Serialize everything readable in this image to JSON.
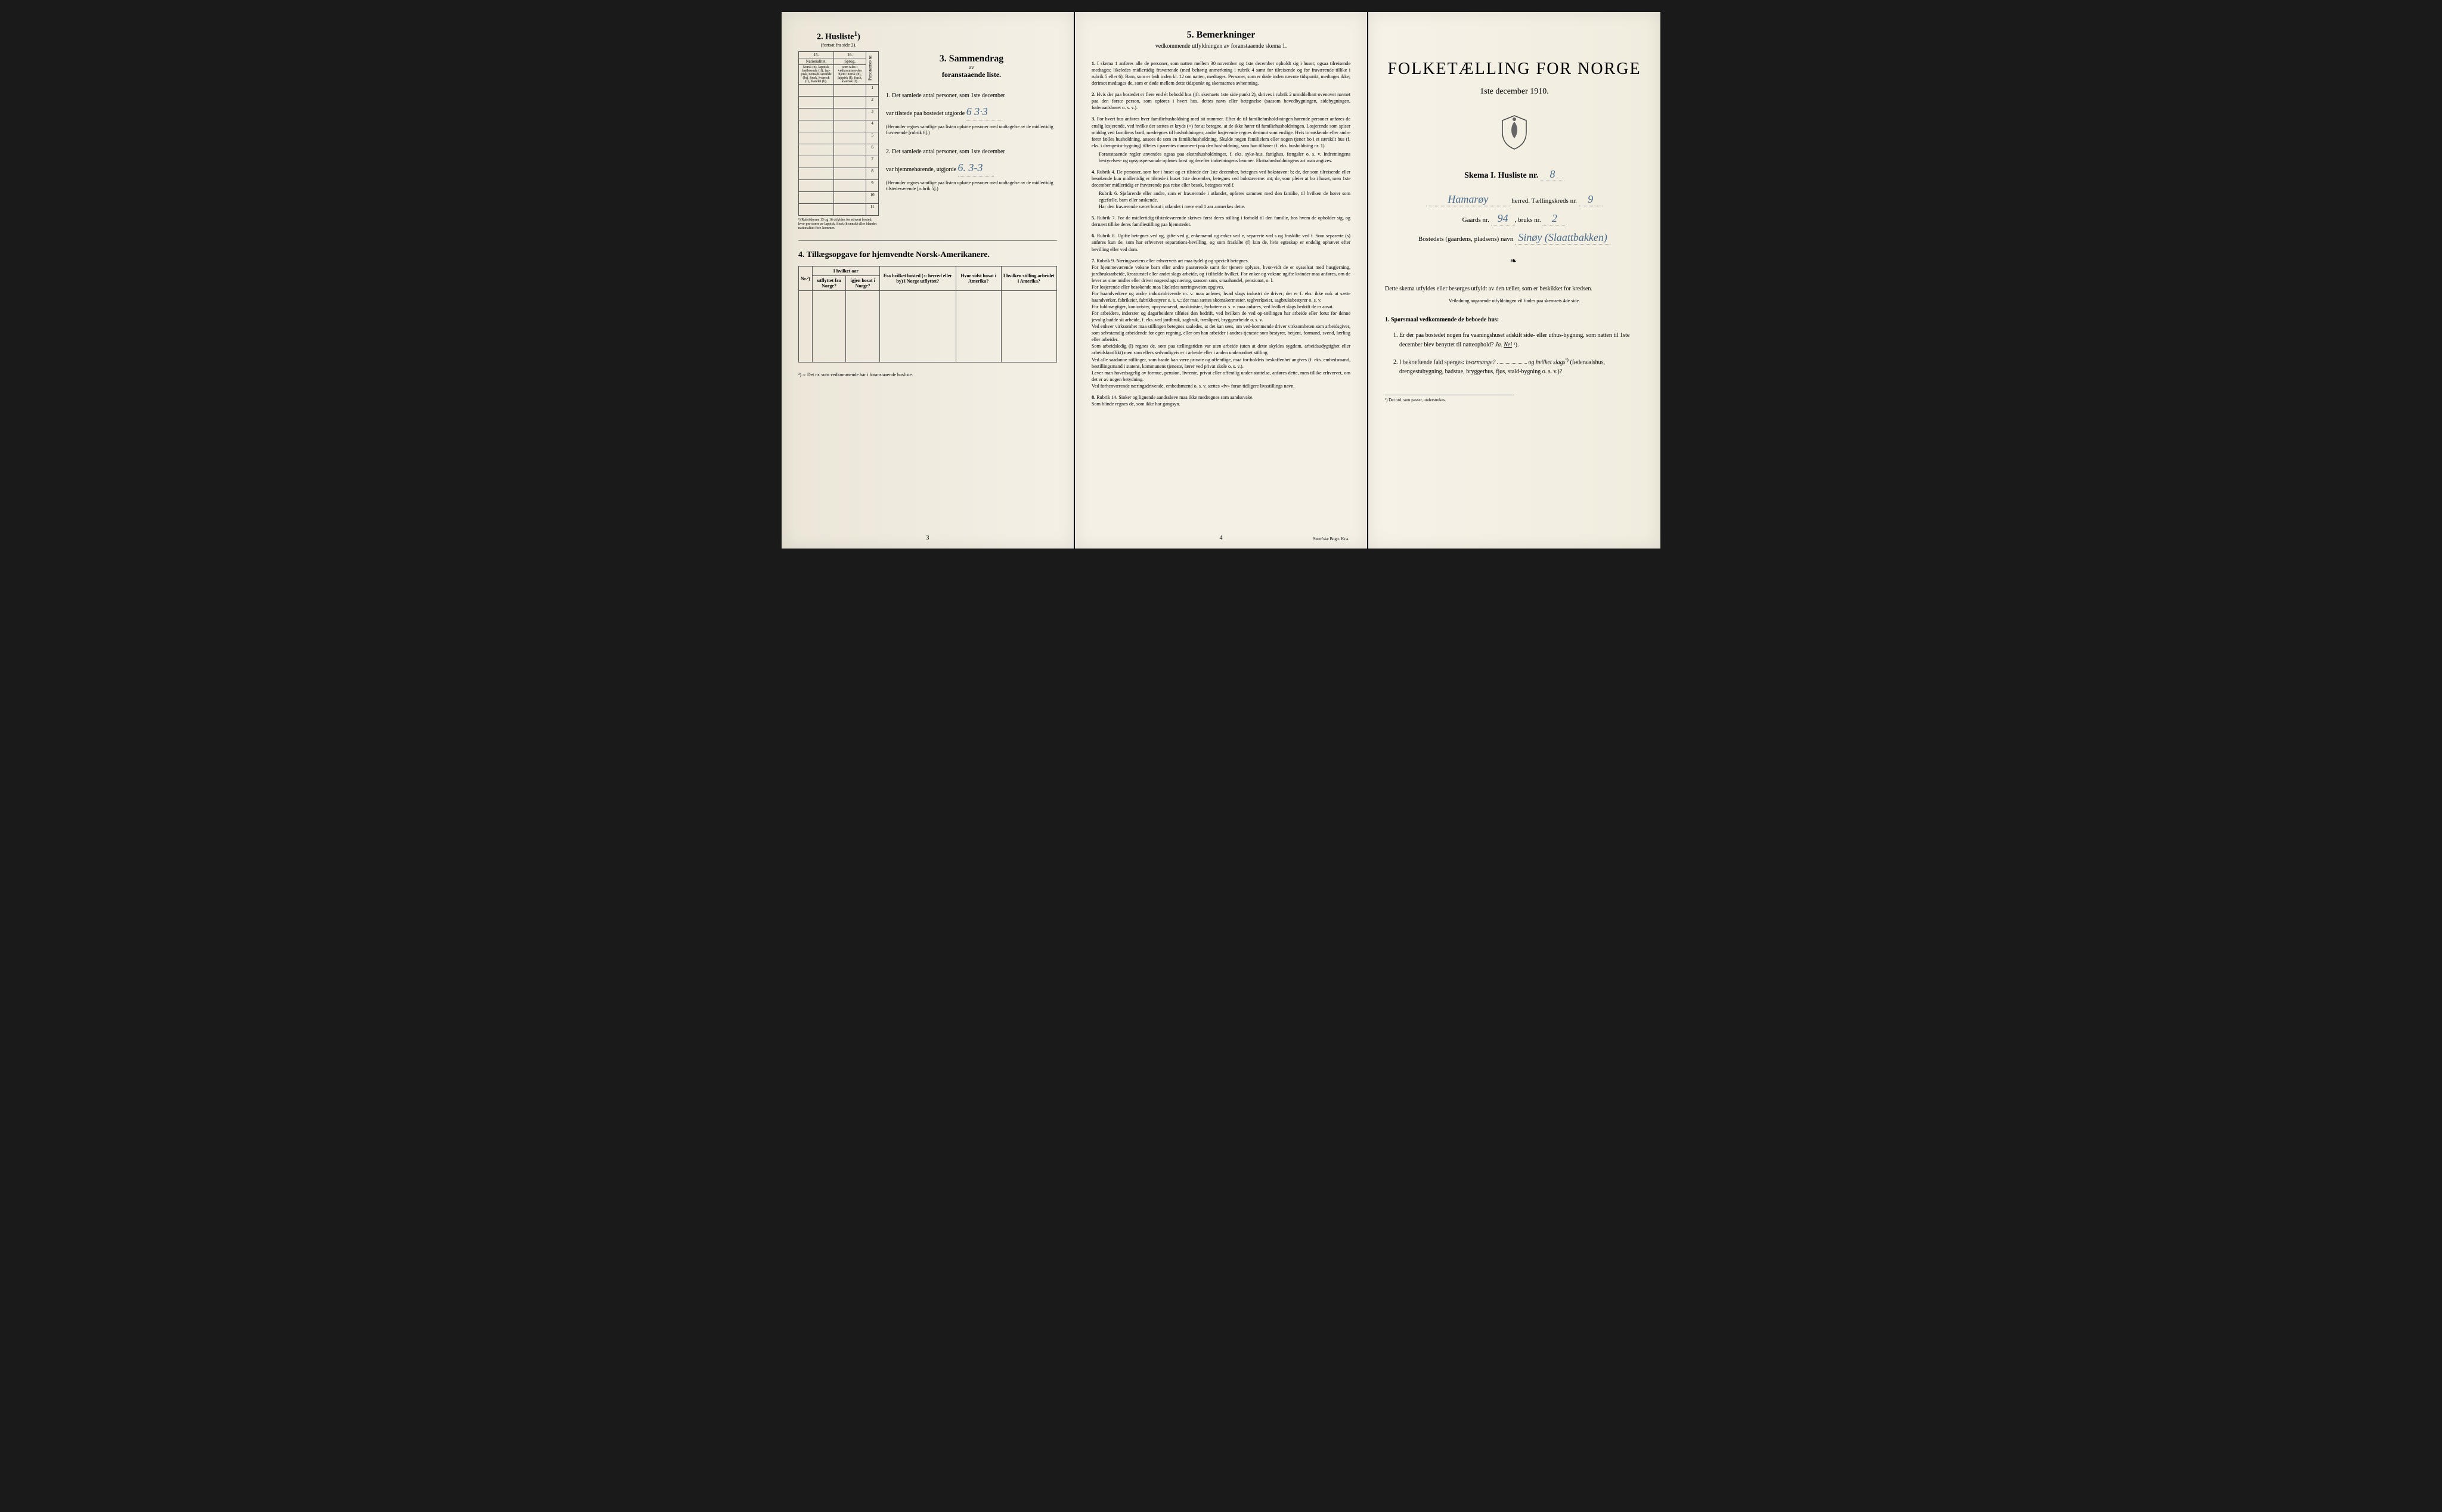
{
  "page1": {
    "husliste": {
      "title": "2. Husliste",
      "sup": "1",
      "sub": "(fortsat fra side 2).",
      "col15": "15.",
      "col16": "16.",
      "col15_head": "Nationalitet.",
      "col16_head": "Sprog,",
      "col15_desc": "Norsk (n), lappisk, fastboende (lf), lap-pisk, nomadi-serende (ln), finsk, kvænsk (f), blandet (b).",
      "col16_desc": "som tales i vedkommen-des hjem: norsk (n), lappisk (l), finsk, kvænsk (f).",
      "col_pers": "Personernes nr.",
      "rows": [
        "1",
        "2",
        "3",
        "4",
        "5",
        "6",
        "7",
        "8",
        "9",
        "10",
        "11"
      ],
      "footnote": "¹) Rubrikkerne 15 og 16 utfyldes for ethvert bosted, hvor per-soner av lappisk, finsk (kvænsk) eller blandet nationalitet fore-kommer."
    },
    "sammendrag": {
      "title": "3. Sammendrag",
      "av": "av",
      "sub": "foranstaaende liste.",
      "item1_label": "1. Det samlede antal personer, som 1ste december",
      "item1_line": "var tilstede paa bostedet utgjorde",
      "item1_value": "6  3·3",
      "item1_note": "(Herunder regnes samtlige paa listen opførte personer med undtagelse av de midlertidig fraværende [rubrik 6].)",
      "item2_label": "2. Det samlede antal personer, som 1ste december",
      "item2_line": "var hjemmehørende, utgjorde",
      "item2_value": "6.  3-3",
      "item2_note": "(Herunder regnes samtlige paa listen opførte personer med undtagelse av de midlertidig tilstedeværende [rubrik 5].)"
    },
    "section4": {
      "title": "4. Tillægsopgave for hjemvendte Norsk-Amerikanere.",
      "headers": [
        "Nr.²)",
        "utflyttet fra Norge?",
        "igjen bosat i Norge?",
        "Fra hvilket bosted (ɔ: herred eller by) i Norge utflyttet?",
        "Hvor sidst bosat i Amerika?",
        "I hvilken stilling arbeidet i Amerika?"
      ],
      "group_header": "I hvilket aar",
      "footnote": "²) ɔ: Det nr. som vedkommende har i foranstaaende husliste."
    },
    "page_num": "3"
  },
  "page2": {
    "title": "5. Bemerkninger",
    "sub": "vedkommende utfyldningen av foranstaaende skema 1.",
    "rules": [
      {
        "n": "1.",
        "t": "I skema 1 anføres alle de personer, som natten mellem 30 november og 1ste december opholdt sig i huset; ogsaa tilreisende medtages; likeledes midlertidig fraværende (med behørig anmerkning i rubrik 4 samt for tilreisende og for fraværende tillike i rubrik 5 eller 6). Barn, som er født inden kl. 12 om natten, medtages. Personer, som er døde inden nævnte tidspunkt, medtages ikke; derimot medtages de, som er døde mellem dette tidspunkt og skemaernes avhentning."
      },
      {
        "n": "2.",
        "t": "Hvis der paa bostedet er flere end ét bebodd hus (jfr. skemaets 1ste side punkt 2), skrives i rubrik 2 umiddelbart ovenover navnet paa den første person, som opføres i hvert hus, dettes navn eller betegnelse (saasom hovedbygningen, sidebygningen, føderaadshuset o. s. v.)."
      },
      {
        "n": "3.",
        "t": "For hvert hus anføres hver familiehusholdning med sit nummer. Efter de til familiehushold-ningen hørende personer anføres de enslig losjerende, ved hvilke der sættes et kryds (×) for at betegne, at de ikke hører til familiehusholdningen. Losjerende som spiser middag ved familiens bord, medregnes til husholdningen; andre losjerende regnes derimot som enslige. Hvis to søskende eller andre fører fælles husholdning, ansees de som en familiehusholdning. Skulde nogen familielem eller nogen tjener bo i et særskilt hus (f. eks. i drengestu-bygning) tilfeies i parentes nummeret paa den husholdning, som han tilhører (f. eks. husholdning nr. 1).",
        "extra": "Foranstaaende regler anvendes ogsaa paa ekstrahusholdninger, f. eks. syke-hus, fattighus, fængsler o. s. v. Indretningens bestyrelses- og opsynspersonale opføres først og derefter indretningens lemmer. Ekstrahusholdningens art maa angives."
      },
      {
        "n": "4.",
        "t": "Rubrik 4. De personer, som bor i huset og er tilstede der 1ste december, betegnes ved bokstaven: b; de, der som tilreisende eller besøkende kun midlertidig er tilstede i huset 1ste december, betegnes ved bokstaverne: mt; de, som pleier at bo i huset, men 1ste december midlertidig er fraværende paa reise eller besøk, betegnes ved f.",
        "extra": "Rubrik 6. Sjøfarende eller andre, som er fraværende i utlandet, opføres sammen med den familie, til hvilken de hører som egtefælle, barn eller søskende.\nHar den fraværende været bosat i utlandet i mere end 1 aar anmerkes dette."
      },
      {
        "n": "5.",
        "t": "Rubrik 7. For de midlertidig tilstedeværende skrives først deres stilling i forhold til den familie, hos hvem de opholder sig, og dernæst tillike deres familiestilling paa hjemstedet."
      },
      {
        "n": "6.",
        "t": "Rubrik 8. Ugifte betegnes ved ug, gifte ved g, enkemænd og enker ved e, separerte ved s og fraskilte ved f. Som separerte (s) anføres kun de, som har erhvervet separations-bevilling, og som fraskilte (f) kun de, hvis egteskap er endelig ophævet efter bevilling eller ved dom."
      },
      {
        "n": "7.",
        "t": "Rubrik 9. Næringsveiens eller erhvervets art maa tydelig og specielt betegnes.\nFor hjemmeværende voksne barn eller andre paarørende samt for tjenere oplyses, hvor-vidt de er sysselsat med husgjerning, jordbruksarbeide, kreaturstel eller andet slags arbeide, og i tilfælde hvilket. For enker og voksne ugifte kvinder maa anføres, om de lever av sine midler eller driver nogenslags næring, saasom søm, smaahandel, pensionat, o. l.\nFor losjerende eller besøkende maa likeledes næringsveien opgives.\nFor haandverkere og andre industridrivende m. v. maa anføres, hvad slags industri de driver; det er f. eks. ikke nok at sætte haandverker, fabrikeier, fabrikbestyrer o. s. v.; der maa sættes skomakermester, teglverkseier, sagbruksbestyrer o. s. v.\nFor fuldmægtiger, kontorister, opsynsmænd, maskinister, fyrbøtere o. s. v. maa anføres, ved hvilket slags bedrift de er ansat.\nFor arbeidere, inderster og dagarbeidere tilføies den bedrift, ved hvilken de ved op-tællingen har arbeide eller forut for denne jevnlig hadde sit arbeide, f. eks. ved jordbruk, sagbruk, træsliperi, bryggearbeide o. s. v.\nVed enhver virksomhet maa stillingen betegnes saaledes, at det kan sees, om ved-kommende driver virksomheten som arbeidsgiver, som selvstændig arbeidende for egen regning, eller om han arbeider i andres tjeneste som bestyrer, betjent, formand, svend, lærling eller arbeider.\nSom arbeidsledig (l) regnes de, som paa tællingstiden var uten arbeide (uten at dette skyldes sygdom, arbeidsudygtighet eller arbeidskonflikt) men som ellers sedvanligvis er i arbeide eller i anden underordnet stilling.\nVed alle saadanne stillinger, som baade kan være private og offentlige, maa for-holdets beskaffenhet angives (f. eks. embedsmand, bestillingsmand i statens, kommunens tjeneste, lærer ved privat skole o. s. v.).\nLever man hovedsagelig av formue, pension, livrente, privat eller offentlig under-støttelse, anføres dette, men tillike erhvervet, om det er av nogen betydning.\nVed forhenværende næringsdrivende, embedsmænd o. s. v. sættes «fv» foran tidligere livsstillings navn."
      },
      {
        "n": "8.",
        "t": "Rubrik 14. Sinker og lignende aandssløve maa ikke medregnes som aandssvake.\nSom blinde regnes de, som ikke har gangsyn."
      }
    ],
    "page_num": "4",
    "imprint": "Steen'ske Bogtr. Kr.a."
  },
  "page3": {
    "title": "FOLKETÆLLING FOR NORGE",
    "date": "1ste december 1910.",
    "skema": "Skema I.  Husliste nr.",
    "husliste_nr": "8",
    "herred_label": "herred.  Tællingskreds nr.",
    "herred_value": "Hamarøy",
    "kreds_nr": "9",
    "gaards_label": "Gaards nr.",
    "gaards_nr": "94",
    "bruks_label": "bruks nr.",
    "bruks_nr": "2",
    "bosted_label": "Bostedets (gaardens, pladsens) navn",
    "bosted_value": "Sinøy (Slaattbakken)",
    "instruct1": "Dette skema utfyldes eller besørges utfyldt av den tæller, som er beskikket for kredsen.",
    "instruct2": "Veiledning angaaende utfyldningen vil findes paa skemaets 4de side.",
    "q_head": "1. Spørsmaal vedkommende de beboede hus:",
    "q1": "Er der paa bostedet nogen fra vaaningshuset adskilt side- eller uthus-bygning, som natten til 1ste december blev benyttet til natteophold?",
    "q1_ja": "Ja.",
    "q1_nei": "Nei",
    "q1_sup": "¹).",
    "q2": "I bekræftende fald spørges:",
    "q2_i": "hvormange?",
    "q2_ii": "og hvilket slags",
    "q2_sup": "¹)",
    "q2_tail": "(føderaadshus, drengestubygning, badstue, bryggerhus, fjøs, stald-bygning o. s. v.)?",
    "footnote": "¹) Det ord, som passer, understrekes."
  }
}
